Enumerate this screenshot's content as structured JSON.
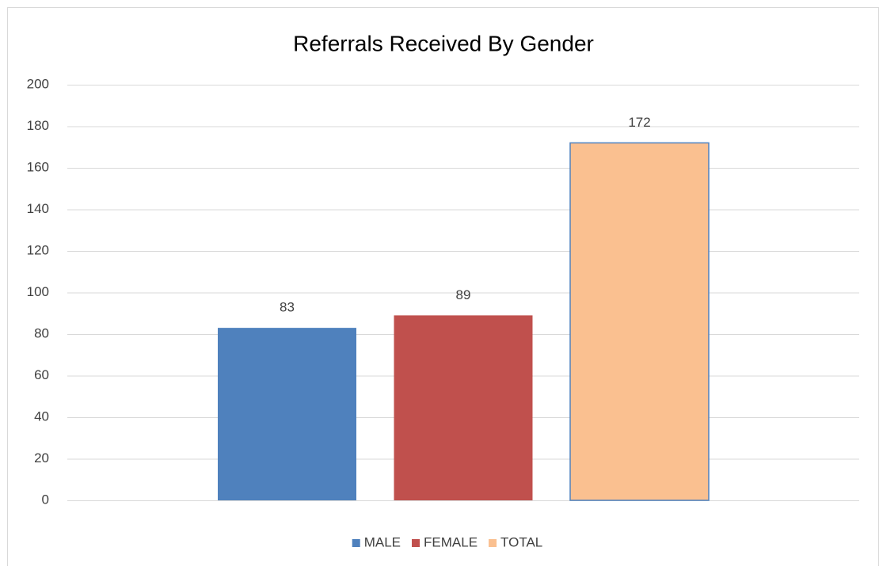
{
  "chart_data": {
    "type": "bar",
    "title": "Referrals Received By Gender",
    "categories": [
      null
    ],
    "series": [
      {
        "name": "MALE",
        "color": "#4f81bd",
        "values": [
          83
        ]
      },
      {
        "name": "FEMALE",
        "color": "#c0504d",
        "values": [
          89
        ]
      },
      {
        "name": "TOTAL",
        "color": "#fac090",
        "edge_color": "#4f81bd",
        "values": [
          172
        ]
      }
    ],
    "ylim": [
      0,
      200
    ],
    "yticks": [
      0,
      20,
      40,
      60,
      80,
      100,
      120,
      140,
      160,
      180,
      200
    ],
    "grid": true,
    "legend": "bottom",
    "data_labels": true
  }
}
